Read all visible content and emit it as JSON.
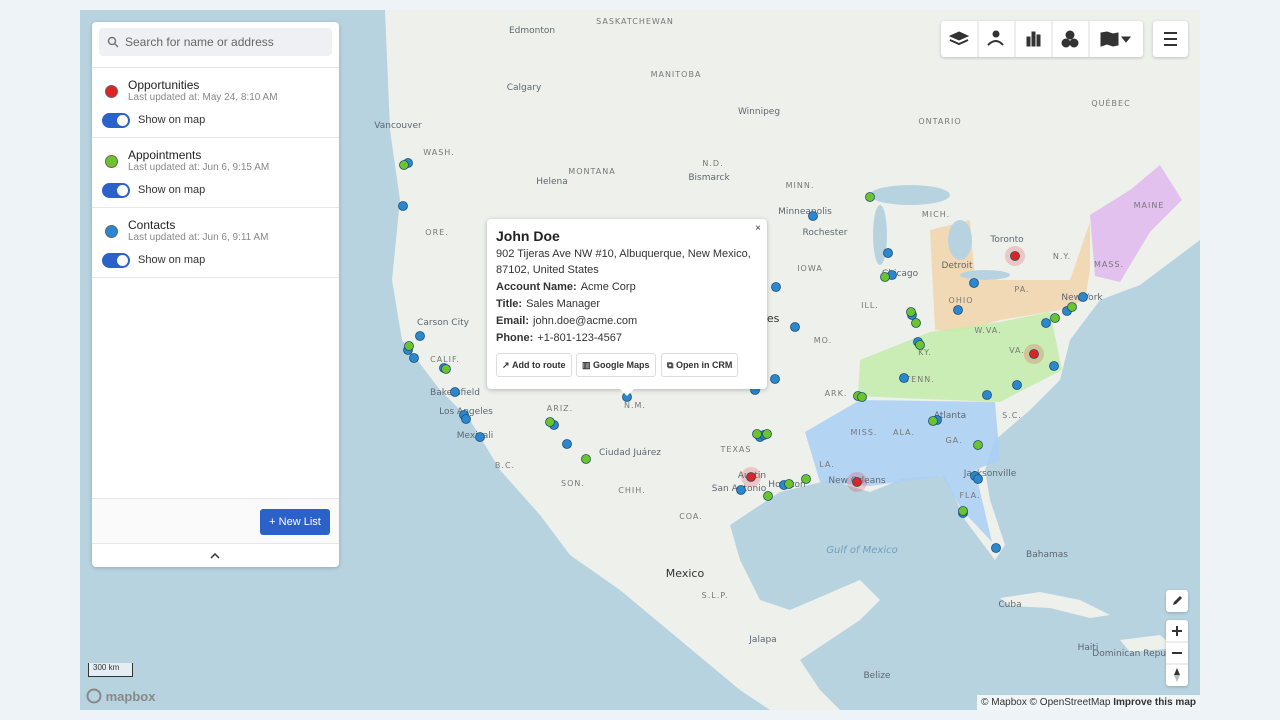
{
  "search_placeholder": "Search for name or address",
  "layers": [
    {
      "name": "Opportunities",
      "updated": "Last updated at: May 24, 8:10 AM",
      "toggle_label": "Show on map"
    },
    {
      "name": "Appointments",
      "updated": "Last updated at: Jun 6, 9:15 AM",
      "toggle_label": "Show on map"
    },
    {
      "name": "Contacts",
      "updated": "Last updated at: Jun 6, 9:11 AM",
      "toggle_label": "Show on map"
    }
  ],
  "new_list_button": "+ New List",
  "popup": {
    "name": "John Doe",
    "address": "902 Tijeras Ave NW #10, Albuquerque, New Mexico, 87102, United States",
    "fields": [
      {
        "label": "Account Name:",
        "value": "Acme Corp"
      },
      {
        "label": "Title:",
        "value": "Sales Manager"
      },
      {
        "label": "Email:",
        "value": "john.doe@acme.com"
      },
      {
        "label": "Phone:",
        "value": "+1-801-123-4567"
      }
    ],
    "close": "×",
    "buttons": [
      "Add to route",
      "Google Maps",
      "Open in CRM"
    ]
  },
  "map_labels": [
    "SASKATCHEWAN",
    "Edmonton",
    "Calgary",
    "Vancouver",
    "MANITOBA",
    "Winnipeg",
    "ONTARIO",
    "QUÉBEC",
    "WASH.",
    "MONTANA",
    "Helena",
    "N.D.",
    "Bismarck",
    "MINN.",
    "Minneapolis",
    "Rochester",
    "ORE.",
    "MICH.",
    "Toronto",
    "Detroit",
    "N.Y.",
    "MAINE",
    "MASS.",
    "IOWA",
    "Chicago",
    "PA.",
    "OHIO",
    "New York",
    "ILL.",
    "W.VA.",
    "VA.",
    "Carson City",
    "CALIF.",
    "Bakersfield",
    "Los Angeles",
    "Mexicali",
    "ARIZ.",
    "N.M.",
    "MO.",
    "KY.",
    "TENN.",
    "ARK.",
    "MISS.",
    "ALA.",
    "GA.",
    "S.C.",
    "Atlanta",
    "TEXAS",
    "Ciudad Juárez",
    "Austin",
    "Houston",
    "San Antonio",
    "LA.",
    "New Orleans",
    "Jacksonville",
    "FLA.",
    "B.C.",
    "SON.",
    "CHIH.",
    "COA.",
    "Mexico",
    "S.L.P.",
    "Gulf of Mexico",
    "Bahamas",
    "Cuba",
    "Belize",
    "Dominican Republic",
    "Haiti",
    "Jalapa",
    "tes"
  ],
  "scale": "300 km",
  "logo": "mapbox",
  "attribution": [
    "© Mapbox",
    "© OpenStreetMap",
    "Improve this map"
  ]
}
